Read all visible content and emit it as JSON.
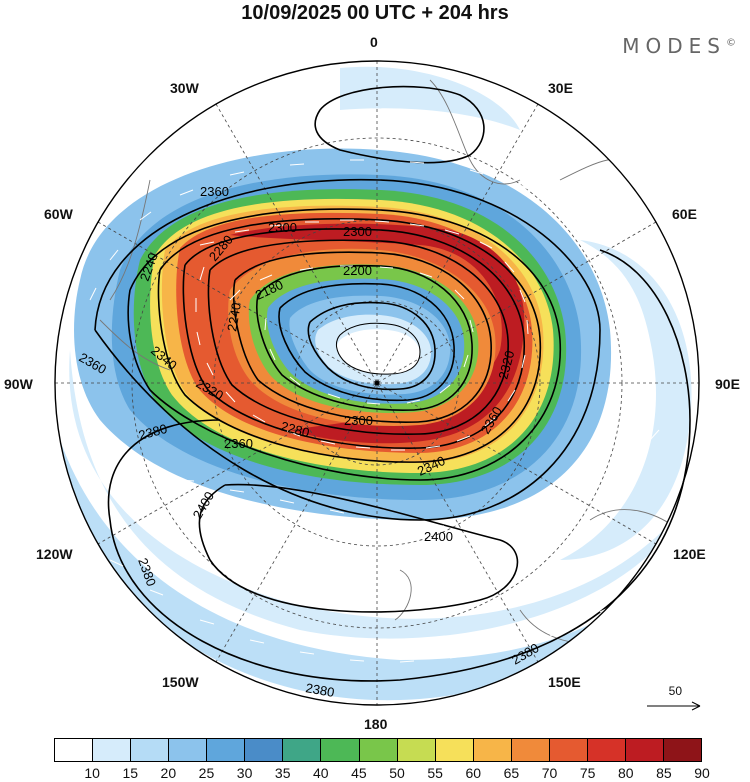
{
  "title": "10/09/2025  00 UTC  + 204 hrs",
  "brand": "MODES",
  "brand_mark": "©",
  "longitude_labels": {
    "n": "0",
    "nne": "30E",
    "ene": "60E",
    "e": "90E",
    "ese": "120E",
    "sse": "150E",
    "s": "180",
    "ssw": "150W",
    "wsw": "120W",
    "w": "90W",
    "wnw": "60W",
    "nnw": "30W"
  },
  "contour_labels": [
    "2360",
    "2240",
    "2280",
    "2300",
    "2300",
    "2200",
    "2180",
    "2240",
    "2360",
    "2340",
    "2320",
    "2320",
    "2300",
    "2280",
    "2360",
    "2340",
    "2380",
    "2360",
    "2400",
    "2400",
    "2380",
    "2380",
    "2380"
  ],
  "vector_reference": "50",
  "colorbar": {
    "ticks": [
      "10",
      "15",
      "20",
      "25",
      "30",
      "35",
      "40",
      "45",
      "50",
      "55",
      "60",
      "65",
      "70",
      "75",
      "80",
      "85",
      "90"
    ],
    "colors": [
      "#ffffff",
      "#d6ecfb",
      "#b5dcf6",
      "#8cc3ec",
      "#5fa6dc",
      "#4a8cc8",
      "#3fa687",
      "#4db856",
      "#79c64a",
      "#c6dc52",
      "#f6e05a",
      "#f7b548",
      "#f08a3a",
      "#e55a30",
      "#d63228",
      "#bd1c22",
      "#8e1418"
    ]
  }
}
